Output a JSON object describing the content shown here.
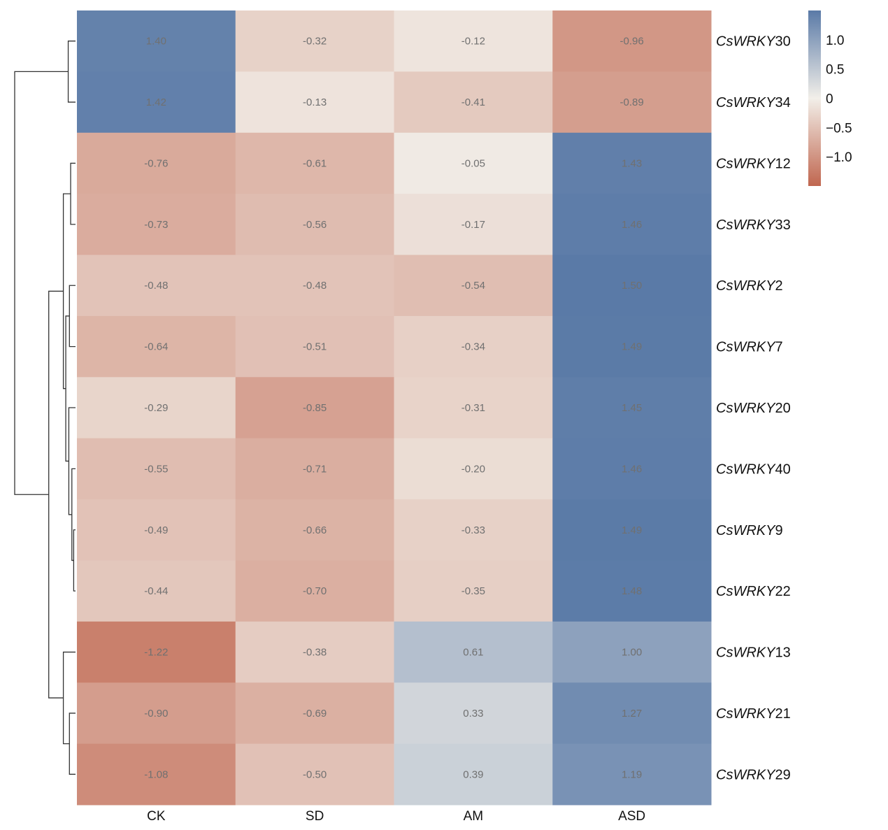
{
  "chart_data": {
    "type": "heatmap",
    "title": "",
    "columns": [
      "CK",
      "SD",
      "AM",
      "ASD"
    ],
    "row_prefix": "CsWRKY",
    "rows": [
      {
        "label": "CsWRKY30",
        "prefix": "CsWRKY",
        "num": "30",
        "values": [
          1.4,
          -0.32,
          -0.12,
          -0.96
        ],
        "texts": [
          "1.40",
          "-0.32",
          "-0.12",
          "-0.96"
        ]
      },
      {
        "label": "CsWRKY34",
        "prefix": "CsWRKY",
        "num": "34",
        "values": [
          1.42,
          -0.13,
          -0.41,
          -0.89
        ],
        "texts": [
          "1.42",
          "-0.13",
          "-0.41",
          "-0.89"
        ]
      },
      {
        "label": "CsWRKY12",
        "prefix": "CsWRKY",
        "num": "12",
        "values": [
          -0.76,
          -0.61,
          -0.05,
          1.43
        ],
        "texts": [
          "-0.76",
          "-0.61",
          "-0.05",
          "1.43"
        ]
      },
      {
        "label": "CsWRKY33",
        "prefix": "CsWRKY",
        "num": "33",
        "values": [
          -0.73,
          -0.56,
          -0.17,
          1.46
        ],
        "texts": [
          "-0.73",
          "-0.56",
          "-0.17",
          "1.46"
        ]
      },
      {
        "label": "CsWRKY2",
        "prefix": "CsWRKY",
        "num": "2",
        "values": [
          -0.48,
          -0.48,
          -0.54,
          1.5
        ],
        "texts": [
          "-0.48",
          "-0.48",
          "-0.54",
          "1.50"
        ]
      },
      {
        "label": "CsWRKY7",
        "prefix": "CsWRKY",
        "num": "7",
        "values": [
          -0.64,
          -0.51,
          -0.34,
          1.49
        ],
        "texts": [
          "-0.64",
          "-0.51",
          "-0.34",
          "1.49"
        ]
      },
      {
        "label": "CsWRKY20",
        "prefix": "CsWRKY",
        "num": "20",
        "values": [
          -0.29,
          -0.85,
          -0.31,
          1.45
        ],
        "texts": [
          "-0.29",
          "-0.85",
          "-0.31",
          "1.45"
        ]
      },
      {
        "label": "CsWRKY40",
        "prefix": "CsWRKY",
        "num": "40",
        "values": [
          -0.55,
          -0.71,
          -0.2,
          1.46
        ],
        "texts": [
          "-0.55",
          "-0.71",
          "-0.20",
          "1.46"
        ]
      },
      {
        "label": "CsWRKY9",
        "prefix": "CsWRKY",
        "num": "9",
        "values": [
          -0.49,
          -0.66,
          -0.33,
          1.49
        ],
        "texts": [
          "-0.49",
          "-0.66",
          "-0.33",
          "1.49"
        ]
      },
      {
        "label": "CsWRKY22",
        "prefix": "CsWRKY",
        "num": "22",
        "values": [
          -0.44,
          -0.7,
          -0.35,
          1.48
        ],
        "texts": [
          "-0.44",
          "-0.70",
          "-0.35",
          "1.48"
        ]
      },
      {
        "label": "CsWRKY13",
        "prefix": "CsWRKY",
        "num": "13",
        "values": [
          -1.22,
          -0.38,
          0.61,
          1.0
        ],
        "texts": [
          "-1.22",
          "-0.38",
          "0.61",
          "1.00"
        ]
      },
      {
        "label": "CsWRKY21",
        "prefix": "CsWRKY",
        "num": "21",
        "values": [
          -0.9,
          -0.69,
          0.33,
          1.27
        ],
        "texts": [
          "-0.90",
          "-0.69",
          "0.33",
          "1.27"
        ]
      },
      {
        "label": "CsWRKY29",
        "prefix": "CsWRKY",
        "num": "29",
        "values": [
          -1.08,
          -0.5,
          0.39,
          1.19
        ],
        "texts": [
          "-1.08",
          "-0.50",
          "0.39",
          "1.19"
        ]
      }
    ],
    "colorbar": {
      "range": [
        -1.5,
        1.5
      ],
      "ticks": [
        {
          "value": 1.0,
          "label": "1.0"
        },
        {
          "value": 0.5,
          "label": "0.5"
        },
        {
          "value": 0,
          "label": "0"
        },
        {
          "value": -0.5,
          "label": "−0.5"
        },
        {
          "value": -1.0,
          "label": "−1.0"
        }
      ],
      "colors": {
        "low": "#c0664f",
        "mid": "#f2efe9",
        "high": "#5a7aa7"
      }
    },
    "row_dendrogram": {
      "merges": [
        {
          "a": "CsWRKY30",
          "b": "CsWRKY34",
          "level": 0.12
        },
        {
          "a": "CsWRKY12",
          "b": "CsWRKY33",
          "level": 0.08
        },
        {
          "a": "CsWRKY2",
          "b": "CsWRKY7",
          "level": 0.1
        },
        {
          "a": "CsWRKY9",
          "b": "CsWRKY22",
          "level": 0.03
        },
        {
          "a": "CsWRKY40",
          "b": "[CsWRKY9,CsWRKY22]",
          "level": 0.06
        },
        {
          "a": "CsWRKY20",
          "b": "[CsWRKY40,...]",
          "level": 0.11
        },
        {
          "a": "[CsWRKY2,CsWRKY7]",
          "b": "[CsWRKY20,...]",
          "level": 0.16
        },
        {
          "a": "[CsWRKY12,CsWRKY33]",
          "b": "[CsWRKY2,...]",
          "level": 0.2
        },
        {
          "a": "CsWRKY21",
          "b": "CsWRKY29",
          "level": 0.1
        },
        {
          "a": "CsWRKY13",
          "b": "[CsWRKY21,CsWRKY29]",
          "level": 0.2
        },
        {
          "a": "[CsWRKY12,...]",
          "b": "[CsWRKY13,...]",
          "level": 0.44
        },
        {
          "a": "[CsWRKY30,CsWRKY34]",
          "b": "[CsWRKY12,...,CsWRKY29]",
          "level": 1.0
        }
      ]
    }
  }
}
